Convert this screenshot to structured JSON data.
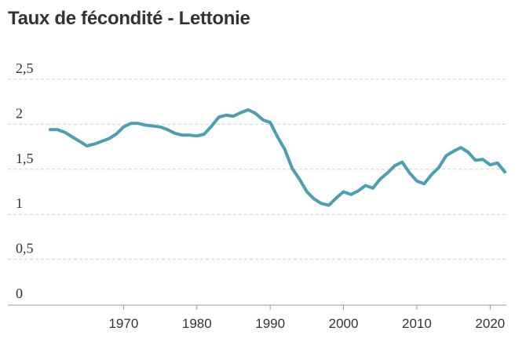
{
  "chart_data": {
    "type": "line",
    "title": "Taux de fécondité - Lettonie",
    "xlabel": "",
    "ylabel": "",
    "ylim": [
      0,
      2.5
    ],
    "xlim": [
      1960,
      2022
    ],
    "grid": true,
    "y_ticks": [
      {
        "value": 0,
        "label": "0"
      },
      {
        "value": 0.5,
        "label": "0,5"
      },
      {
        "value": 1,
        "label": "1"
      },
      {
        "value": 1.5,
        "label": "1,5"
      },
      {
        "value": 2,
        "label": "2"
      },
      {
        "value": 2.5,
        "label": "2,5"
      }
    ],
    "x_ticks": [
      {
        "value": 1970,
        "label": "1970"
      },
      {
        "value": 1980,
        "label": "1980"
      },
      {
        "value": 1990,
        "label": "1990"
      },
      {
        "value": 2000,
        "label": "2000"
      },
      {
        "value": 2010,
        "label": "2010"
      },
      {
        "value": 2020,
        "label": "2020"
      }
    ],
    "series": [
      {
        "color": "#4a9fb5",
        "x": [
          1960,
          1961,
          1962,
          1963,
          1964,
          1965,
          1966,
          1967,
          1968,
          1969,
          1970,
          1971,
          1972,
          1973,
          1974,
          1975,
          1976,
          1977,
          1978,
          1979,
          1980,
          1981,
          1982,
          1983,
          1984,
          1985,
          1986,
          1987,
          1988,
          1989,
          1990,
          1991,
          1992,
          1993,
          1994,
          1995,
          1996,
          1997,
          1998,
          1999,
          2000,
          2001,
          2002,
          2003,
          2004,
          2005,
          2006,
          2007,
          2008,
          2009,
          2010,
          2011,
          2012,
          2013,
          2014,
          2015,
          2016,
          2017,
          2018,
          2019,
          2020,
          2021,
          2022
        ],
        "y": [
          1.94,
          1.94,
          1.91,
          1.86,
          1.81,
          1.76,
          1.78,
          1.81,
          1.84,
          1.89,
          1.97,
          2.01,
          2.01,
          1.99,
          1.98,
          1.97,
          1.94,
          1.9,
          1.88,
          1.88,
          1.87,
          1.89,
          1.98,
          2.08,
          2.1,
          2.09,
          2.13,
          2.16,
          2.12,
          2.05,
          2.02,
          1.86,
          1.72,
          1.51,
          1.39,
          1.25,
          1.17,
          1.12,
          1.1,
          1.18,
          1.25,
          1.22,
          1.26,
          1.32,
          1.29,
          1.39,
          1.46,
          1.54,
          1.58,
          1.46,
          1.37,
          1.34,
          1.44,
          1.52,
          1.65,
          1.7,
          1.74,
          1.69,
          1.6,
          1.61,
          1.55,
          1.57,
          1.47
        ]
      }
    ]
  }
}
